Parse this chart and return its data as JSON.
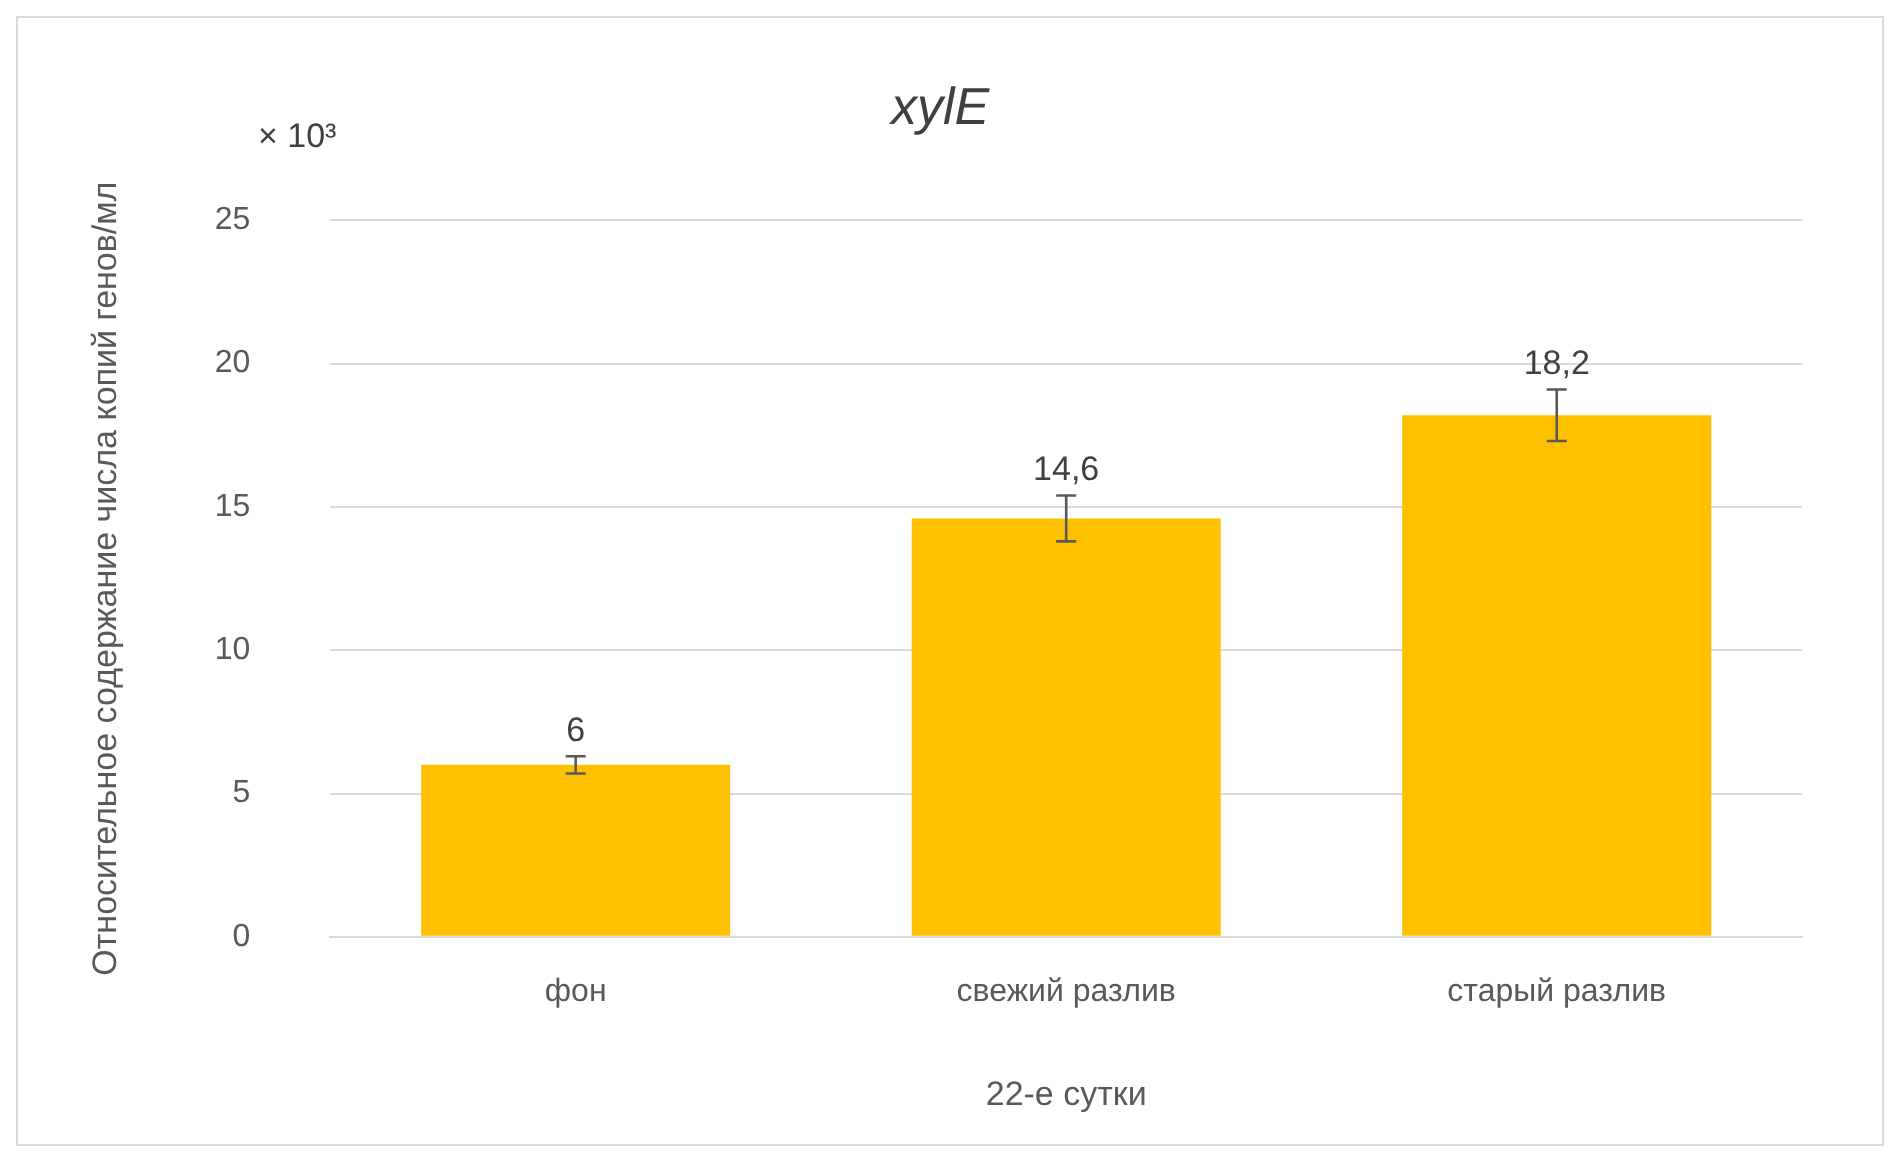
{
  "chart_data": {
    "type": "bar",
    "title": "xylE",
    "xlabel": "22-е сутки",
    "ylabel": "Относительное содержание числа копий генов/мл",
    "annotations": [
      "× 10³"
    ],
    "categories": [
      "фон",
      "свежий разлив",
      "старый разлив"
    ],
    "series": [
      {
        "color": "#ffc000",
        "values": [
          6,
          14.6,
          18.2
        ],
        "errors": [
          0.3,
          0.8,
          0.9
        ],
        "value_labels": [
          "6",
          "14,6",
          "18,2"
        ]
      }
    ],
    "ylim": [
      0,
      25
    ],
    "yticks": [
      0,
      5,
      10,
      15,
      20,
      25
    ],
    "grid": "y",
    "legend": false
  }
}
